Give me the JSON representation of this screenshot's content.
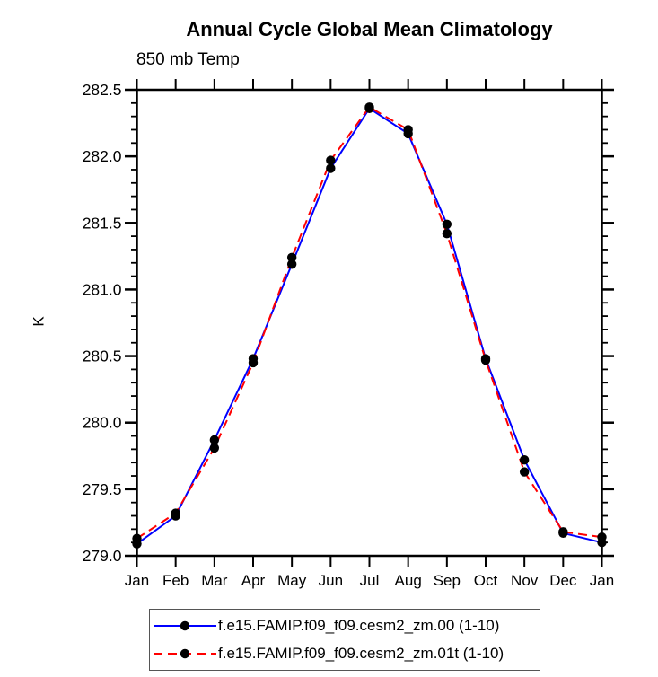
{
  "title": "Annual Cycle Global Mean Climatology",
  "subtitle": "850 mb Temp",
  "chart_data": {
    "type": "line",
    "title": "Annual Cycle Global Mean Climatology",
    "subtitle": "850 mb Temp",
    "xlabel": "",
    "ylabel": "K",
    "categories": [
      "Jan",
      "Feb",
      "Mar",
      "Apr",
      "May",
      "Jun",
      "Jul",
      "Aug",
      "Sep",
      "Oct",
      "Nov",
      "Dec",
      "Jan"
    ],
    "ylim": [
      279.0,
      282.5
    ],
    "yticks": [
      279.0,
      279.5,
      280.0,
      280.5,
      281.0,
      281.5,
      282.0,
      282.5
    ],
    "y_minor_step": 0.1,
    "grid": false,
    "legend_position": "bottom",
    "axis_color": "#000000",
    "marker_color": "#000000",
    "series": [
      {
        "name": "f.e15.FAMIP.f09_f09.cesm2_zm.00 (1-10)",
        "color": "#0000ff",
        "style": "solid",
        "marker": "circle",
        "values": [
          279.09,
          279.3,
          279.87,
          280.48,
          281.19,
          281.91,
          282.36,
          282.17,
          281.49,
          280.48,
          279.72,
          279.17,
          279.1
        ]
      },
      {
        "name": "f.e15.FAMIP.f09_f09.cesm2_zm.01t (1-10)",
        "color": "#ff0000",
        "style": "dashed",
        "marker": "circle",
        "values": [
          279.13,
          279.32,
          279.81,
          280.45,
          281.24,
          281.97,
          282.37,
          282.2,
          281.42,
          280.47,
          279.63,
          279.18,
          279.14
        ]
      }
    ]
  }
}
